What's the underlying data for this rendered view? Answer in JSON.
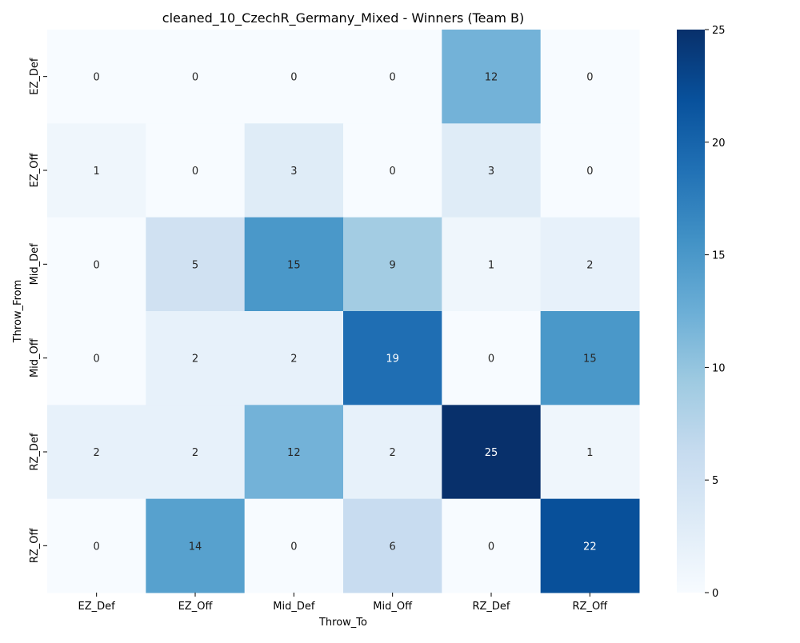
{
  "chart_data": {
    "type": "heatmap",
    "title": "cleaned_10_CzechR_Germany_Mixed - Winners (Team B)",
    "xlabel": "Throw_To",
    "ylabel": "Throw_From",
    "x_categories": [
      "EZ_Def",
      "EZ_Off",
      "Mid_Def",
      "Mid_Off",
      "RZ_Def",
      "RZ_Off"
    ],
    "y_categories": [
      "EZ_Def",
      "EZ_Off",
      "Mid_Def",
      "Mid_Off",
      "RZ_Def",
      "RZ_Off"
    ],
    "values": [
      [
        0,
        0,
        0,
        0,
        12,
        0
      ],
      [
        1,
        0,
        3,
        0,
        3,
        0
      ],
      [
        0,
        5,
        15,
        9,
        1,
        2
      ],
      [
        0,
        2,
        2,
        19,
        0,
        15
      ],
      [
        2,
        2,
        12,
        2,
        25,
        1
      ],
      [
        0,
        14,
        0,
        6,
        0,
        22
      ]
    ],
    "colorbar": {
      "colormap": "Blues",
      "range": [
        0,
        25
      ],
      "ticks": [
        0,
        5,
        10,
        15,
        20,
        25
      ]
    },
    "annotate": true,
    "grid": false,
    "legend": "right"
  }
}
